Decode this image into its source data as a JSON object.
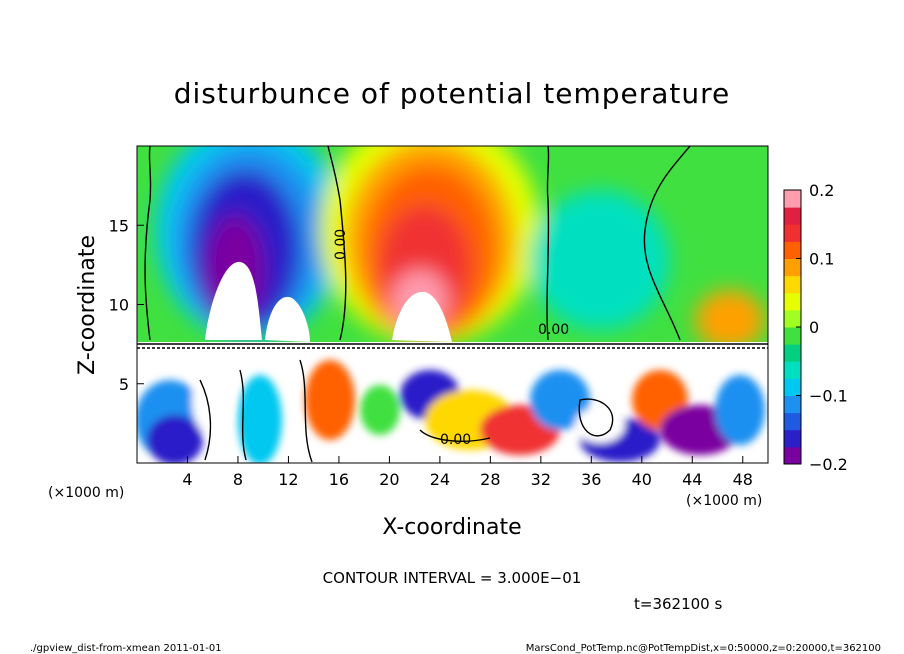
{
  "chart_data": {
    "type": "heatmap",
    "title": "disturbunce of potential temperature",
    "xlabel": "X-coordinate",
    "ylabel": "Z-coordinate",
    "x_unit": "(×1000 m)",
    "y_unit": "(×1000 m)",
    "xlim": [
      0,
      50
    ],
    "ylim": [
      0,
      20
    ],
    "x_ticks": [
      4,
      8,
      12,
      16,
      20,
      24,
      28,
      32,
      36,
      40,
      44,
      48
    ],
    "y_ticks": [
      5,
      10,
      15
    ],
    "colorbar": {
      "range": [
        -0.2,
        0.2
      ],
      "ticks": [
        {
          "value": 0.2,
          "label": "0.2"
        },
        {
          "value": 0.1,
          "label": "0.1"
        },
        {
          "value": 0,
          "label": "0"
        },
        {
          "value": -0.1,
          "label": "−0.1"
        },
        {
          "value": -0.2,
          "label": "−0.2"
        }
      ],
      "colors": [
        "#7a00a0",
        "#2b1fc8",
        "#1f5ae0",
        "#1e90f0",
        "#00c8f0",
        "#00e0c0",
        "#00d080",
        "#40e040",
        "#a0ff20",
        "#e6ff00",
        "#ffd800",
        "#ffa000",
        "#ff6000",
        "#f03030",
        "#e02040",
        "#ff9cae"
      ]
    },
    "contour_interval_label": "CONTOUR INTERVAL = 3.000E−01",
    "time_label": "t=362100 s",
    "contour_labels": [
      "0.00",
      "0.00",
      "0.00"
    ]
  },
  "footer": {
    "left": "./gpview_dist-from-xmean  2011-01-01",
    "right": "MarsCond_PotTemp.nc@PotTempDist,x=0:50000,z=0:20000,t=362100"
  }
}
